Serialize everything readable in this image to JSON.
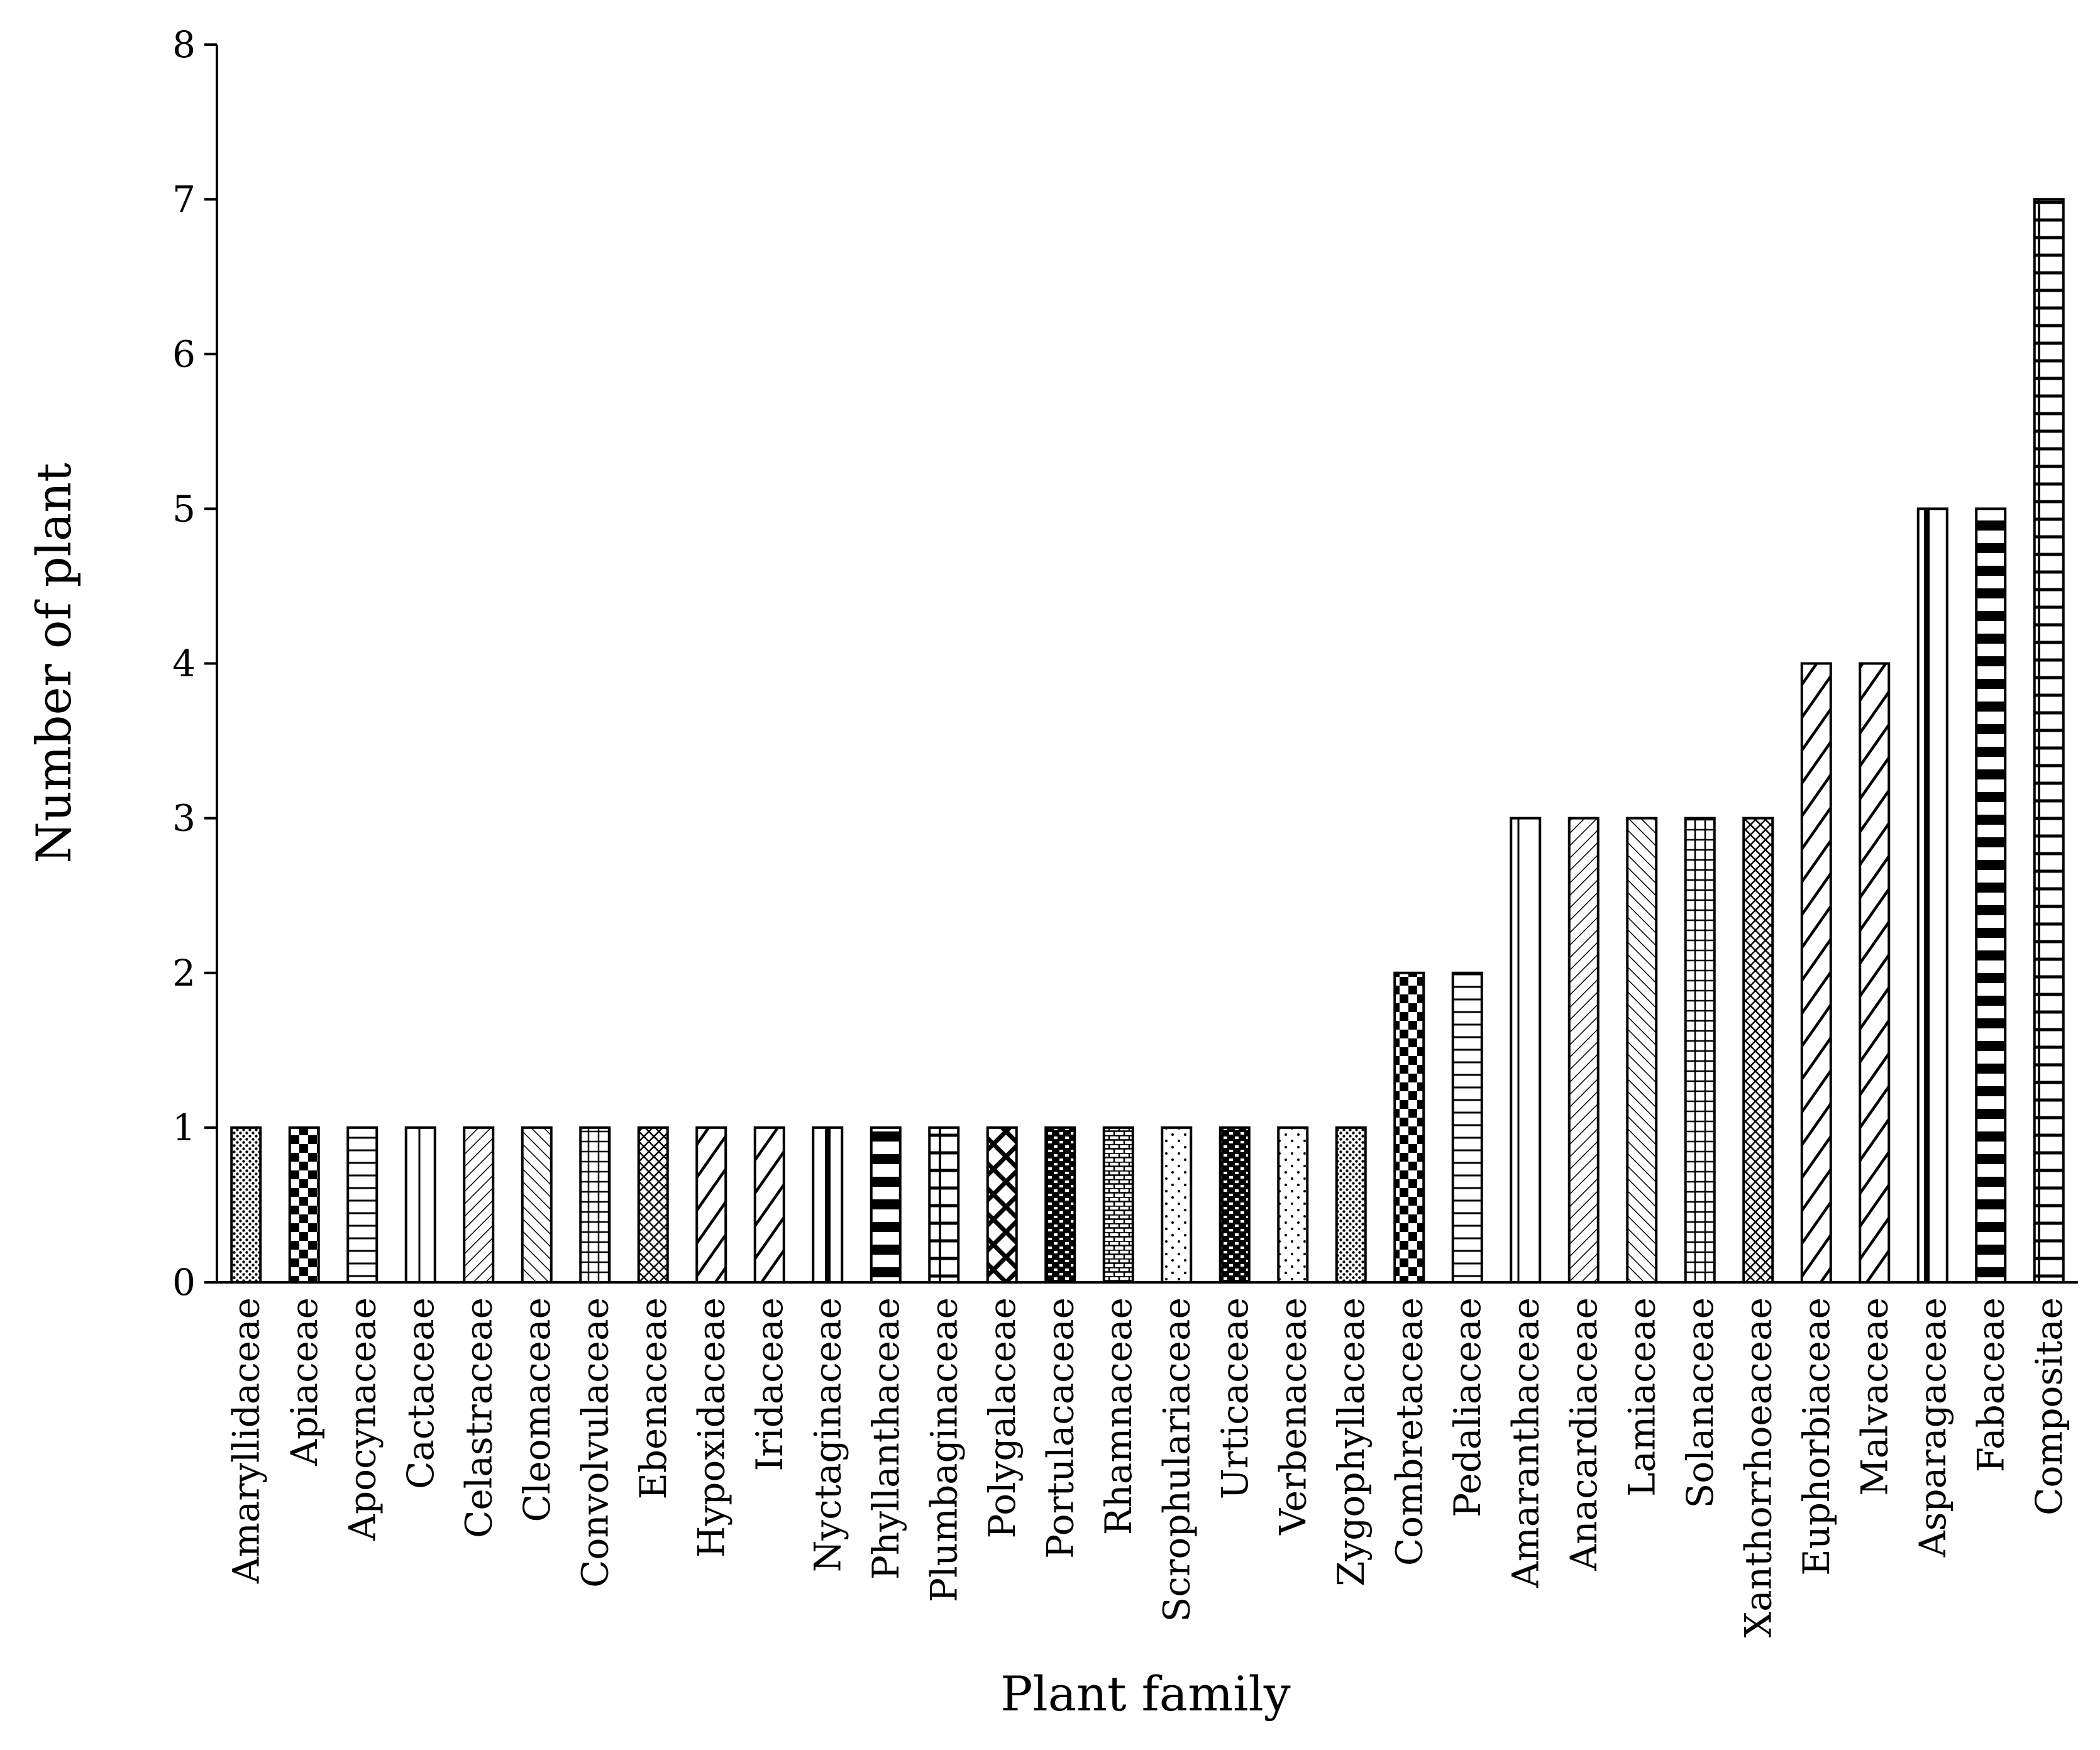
{
  "chart_data": {
    "type": "bar",
    "title": "",
    "xlabel": "Plant family",
    "ylabel": "Number of plant",
    "ylim": [
      0,
      8
    ],
    "yticks": [
      0,
      1,
      2,
      3,
      4,
      5,
      6,
      7,
      8
    ],
    "grid": false,
    "legend": "none",
    "categories": [
      "Amaryllidaceae",
      "Apiaceae",
      "Apocynaceae",
      "Cactaceae",
      "Celastraceae",
      "Cleomaceae",
      "Convolvulaceae",
      "Ebenaceae",
      "Hypoxidaceae",
      "Iridaceae",
      "Nyctaginaceae",
      "Phyllanthaceae",
      "Plumbaginaceae",
      "Polygalaceae",
      "Portulacaceae",
      "Rhamnaceae",
      "Scrophulariaceae",
      "Urticaceae",
      "Verbenaceae",
      "Zygophyllaceae",
      "Combretaceae",
      "Pedaliaceae",
      "Amaranthaceae",
      "Anacardiaceae",
      "Lamiaceae",
      "Solanaceae",
      "Xanthorrhoeaceae",
      "Euphorbiaceae",
      "Malvaceae",
      "Asparagaceae",
      "Fabaceae",
      "Compositae"
    ],
    "values": [
      1,
      1,
      1,
      1,
      1,
      1,
      1,
      1,
      1,
      1,
      1,
      1,
      1,
      1,
      1,
      1,
      1,
      1,
      1,
      1,
      2,
      2,
      3,
      3,
      3,
      3,
      3,
      4,
      4,
      5,
      5,
      7
    ],
    "patterns": [
      "fine-dots",
      "checker",
      "horizontal-lines",
      "single-vertical-line",
      "diagonal-up",
      "diagonal-down",
      "grid",
      "diagonal-cross",
      "wide-diagonal-up",
      "wide-diagonal-up",
      "thick-vertical-stripe",
      "thick-horizontal-bands",
      "brick",
      "wide-diagonal-cross",
      "dense-brick",
      "fine-brick",
      "sparse-dots",
      "dense-brick",
      "sparse-dots",
      "fine-dots",
      "checker",
      "horizontal-lines",
      "single-vertical-line",
      "diagonal-up",
      "diagonal-down",
      "grid",
      "diagonal-cross",
      "wide-diagonal-up",
      "wide-diagonal-up",
      "thick-vertical-stripe",
      "thick-horizontal-bands",
      "brick"
    ]
  }
}
